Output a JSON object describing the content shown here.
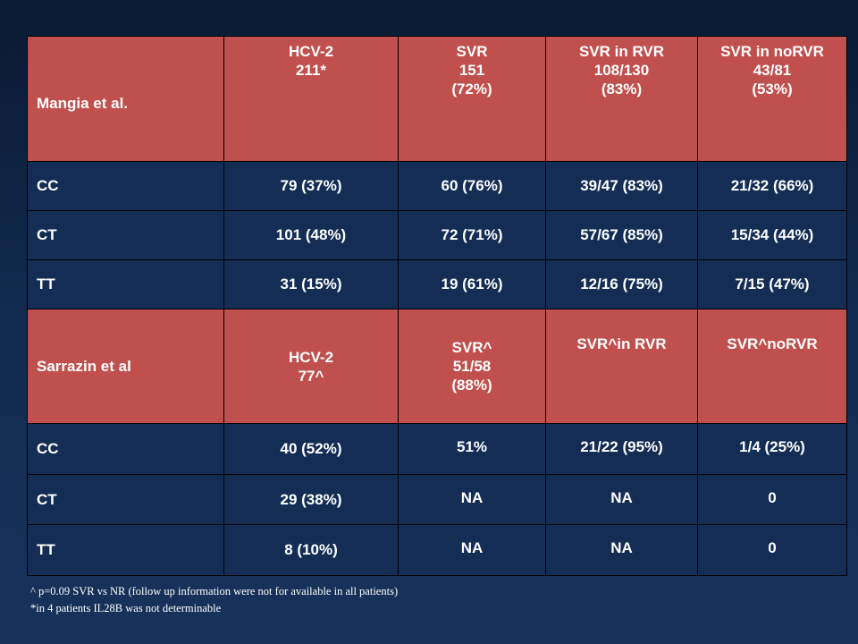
{
  "table1": {
    "header": [
      "Mangia et al.",
      [
        "HCV-2",
        "211*"
      ],
      [
        "SVR",
        "151",
        "(72%)"
      ],
      [
        "SVR in RVR",
        "108/130",
        "(83%)"
      ],
      [
        "SVR in noRVR",
        "43/81",
        "(53%)"
      ]
    ],
    "rows": [
      [
        "CC",
        "79 (37%)",
        "60 (76%)",
        "39/47 (83%)",
        "21/32 (66%)"
      ],
      [
        "CT",
        "101 (48%)",
        "72 (71%)",
        "57/67 (85%)",
        "15/34 (44%)"
      ],
      [
        "TT",
        "31 (15%)",
        "19 (61%)",
        "12/16 (75%)",
        "7/15  (47%)"
      ]
    ]
  },
  "table2": {
    "header": [
      "Sarrazin et al",
      [
        "HCV-2",
        "77^"
      ],
      [
        "SVR^",
        "51/58",
        "(88%)"
      ],
      "SVR^in RVR",
      "SVR^noRVR"
    ],
    "rows": [
      [
        "CC",
        "40 (52%)",
        "51%",
        "21/22 (95%)",
        "1/4 (25%)"
      ],
      [
        "CT",
        "29 (38%)",
        "NA",
        "NA",
        "0"
      ],
      [
        "TT",
        "8 (10%)",
        "NA",
        "NA",
        "0"
      ]
    ]
  },
  "footnotes": [
    "^ p=0.09 SVR vs NR (follow up information were not for available in all patients)",
    "*in 4 patients IL28B was not determinable"
  ]
}
